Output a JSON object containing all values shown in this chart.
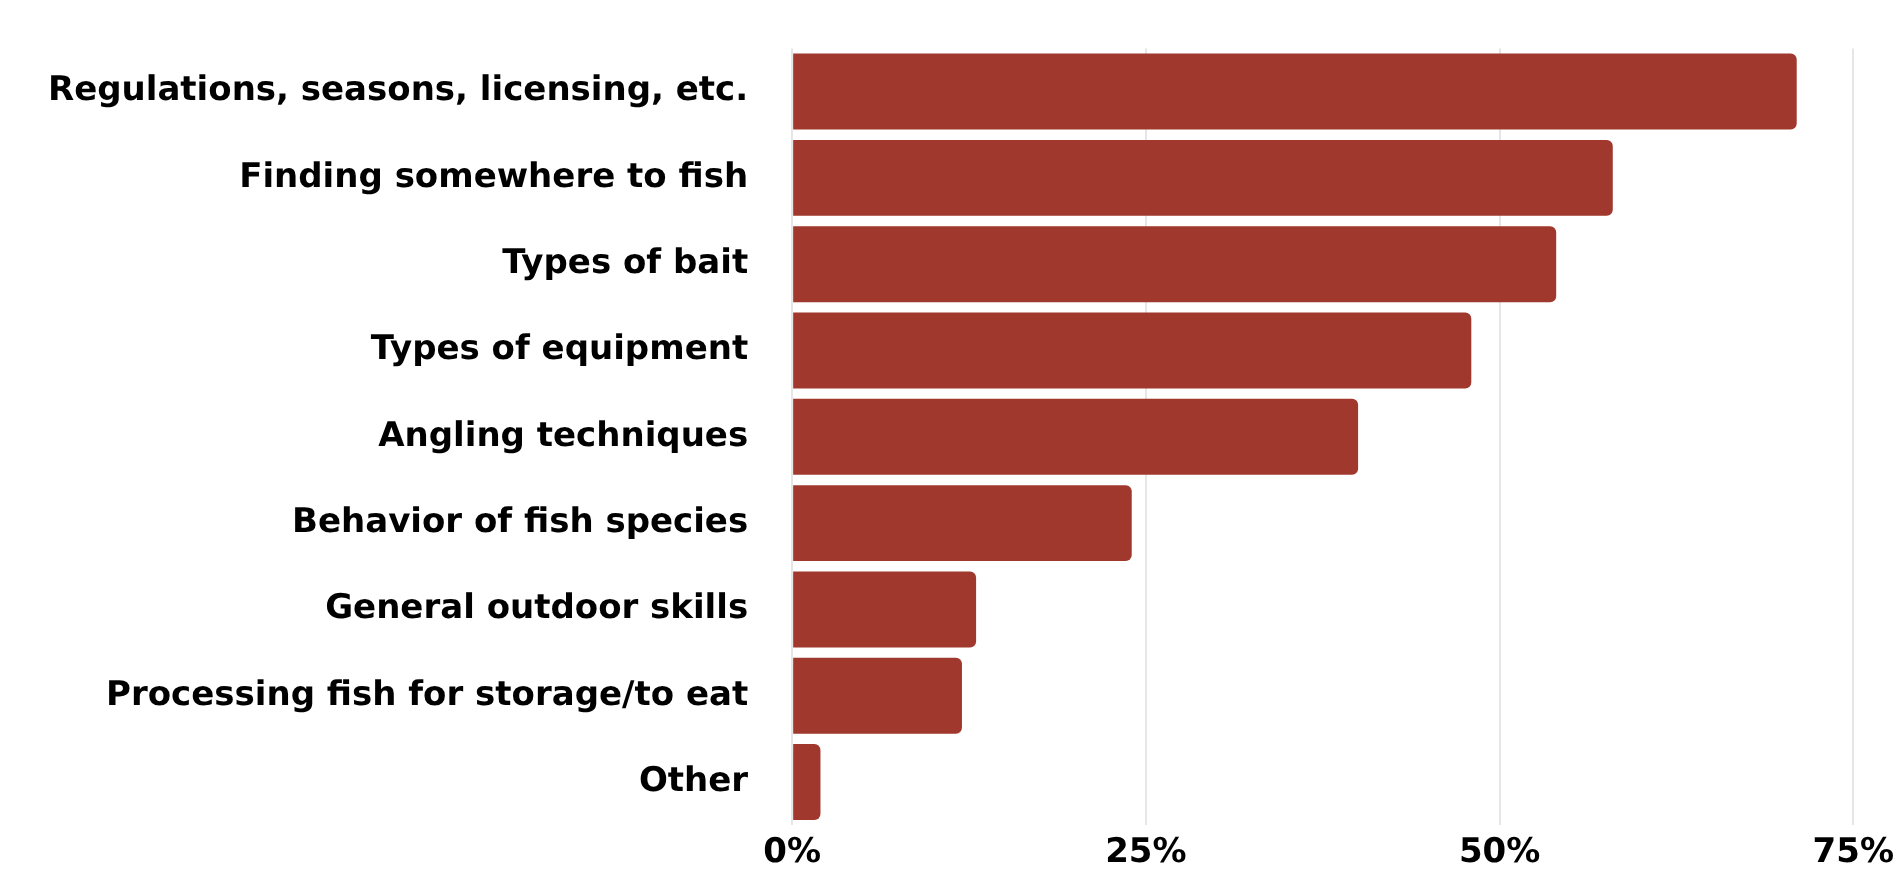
{
  "chart_data": {
    "type": "bar",
    "orientation": "horizontal",
    "categories": [
      "Regulations, seasons, licensing, etc.",
      "Finding somewhere to fish",
      "Types of bait",
      "Types of equipment",
      "Angling techniques",
      "Behavior of fish species",
      "General outdoor skills",
      "Processing fish for storage/to eat",
      "Other"
    ],
    "values": [
      71,
      58,
      54,
      48,
      40,
      24,
      13,
      12,
      2
    ],
    "color": "#a0382d",
    "xlim": [
      0,
      75
    ],
    "xticks": [
      {
        "value": 0,
        "label": "0%"
      },
      {
        "value": 25,
        "label": "25%"
      },
      {
        "value": 50,
        "label": "50%"
      },
      {
        "value": 75,
        "label": "75%"
      }
    ],
    "grid": "x",
    "legend": false
  }
}
